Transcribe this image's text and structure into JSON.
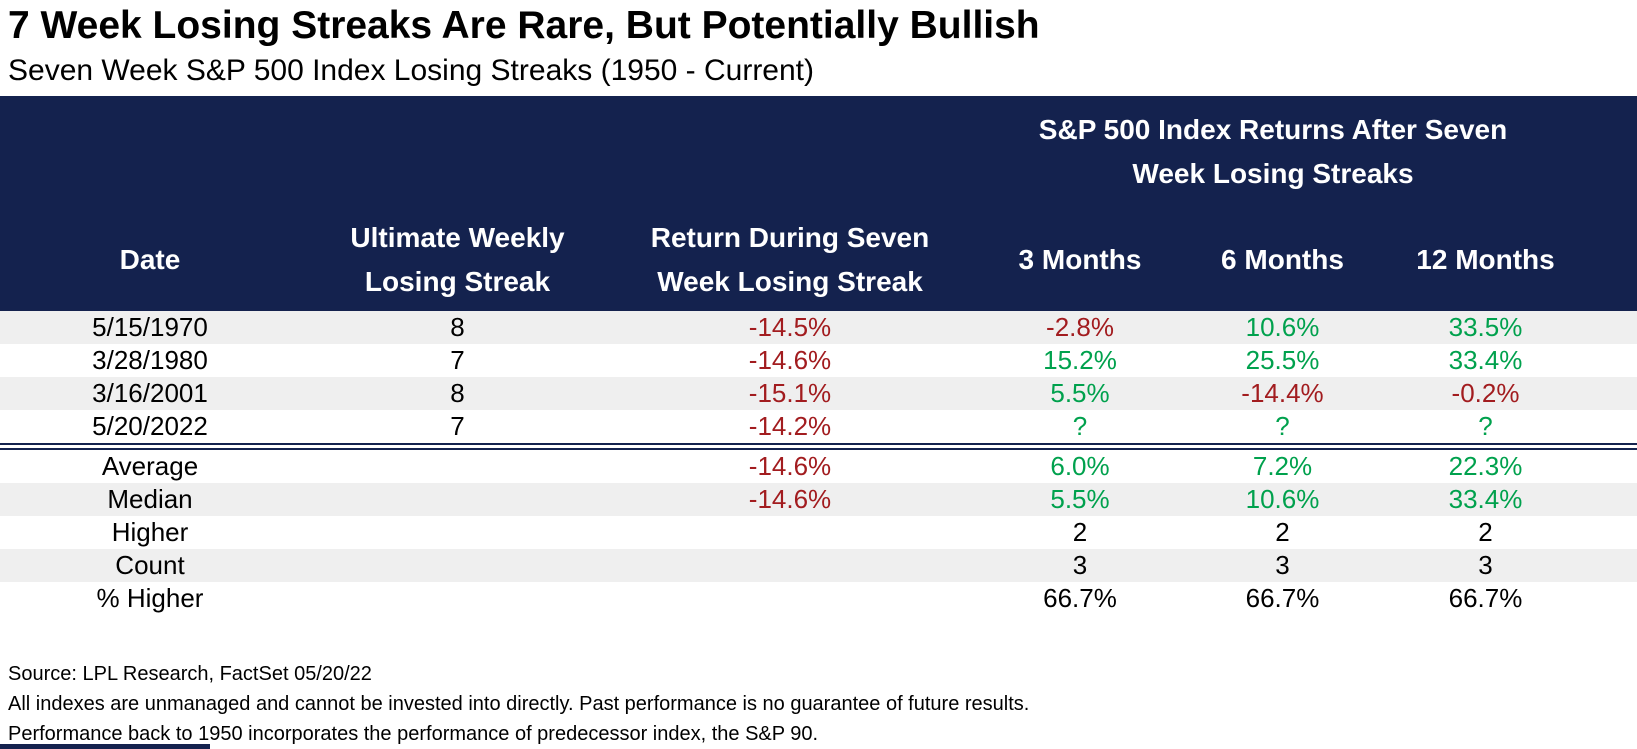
{
  "colors": {
    "navy": "#14224E",
    "negative": "#A21C1F",
    "positive": "#00A14D",
    "shade": "#EFEFEF",
    "text": "#000000"
  },
  "title": "7 Week Losing Streaks Are Rare, But Potentially Bullish",
  "subtitle": "Seven Week S&P 500 Index Losing Streaks (1950 - Current)",
  "table": {
    "group_header": "S&P 500 Index Returns After Seven\nWeek Losing Streaks",
    "columns": [
      "Date",
      "Ultimate Weekly\nLosing Streak",
      "Return During Seven\nWeek Losing Streak",
      "3 Months",
      "6 Months",
      "12 Months"
    ],
    "rows": [
      {
        "date": "5/15/1970",
        "streak": "8",
        "ret": {
          "text": "-14.5%",
          "tone": "neg"
        },
        "m3": {
          "text": "-2.8%",
          "tone": "neg"
        },
        "m6": {
          "text": "10.6%",
          "tone": "pos"
        },
        "m12": {
          "text": "33.5%",
          "tone": "pos"
        }
      },
      {
        "date": "3/28/1980",
        "streak": "7",
        "ret": {
          "text": "-14.6%",
          "tone": "neg"
        },
        "m3": {
          "text": "15.2%",
          "tone": "pos"
        },
        "m6": {
          "text": "25.5%",
          "tone": "pos"
        },
        "m12": {
          "text": "33.4%",
          "tone": "pos"
        }
      },
      {
        "date": "3/16/2001",
        "streak": "8",
        "ret": {
          "text": "-15.1%",
          "tone": "neg"
        },
        "m3": {
          "text": "5.5%",
          "tone": "pos"
        },
        "m6": {
          "text": "-14.4%",
          "tone": "neg"
        },
        "m12": {
          "text": "-0.2%",
          "tone": "neg"
        }
      },
      {
        "date": "5/20/2022",
        "streak": "7",
        "ret": {
          "text": "-14.2%",
          "tone": "neg"
        },
        "m3": {
          "text": "?",
          "tone": "pos"
        },
        "m6": {
          "text": "?",
          "tone": "pos"
        },
        "m12": {
          "text": "?",
          "tone": "pos"
        }
      }
    ],
    "summary": [
      {
        "label": "Average",
        "streak": "",
        "ret": {
          "text": "-14.6%",
          "tone": "neg"
        },
        "m3": {
          "text": "6.0%",
          "tone": "pos"
        },
        "m6": {
          "text": "7.2%",
          "tone": "pos"
        },
        "m12": {
          "text": "22.3%",
          "tone": "pos"
        }
      },
      {
        "label": "Median",
        "streak": "",
        "ret": {
          "text": "-14.6%",
          "tone": "neg"
        },
        "m3": {
          "text": "5.5%",
          "tone": "pos"
        },
        "m6": {
          "text": "10.6%",
          "tone": "pos"
        },
        "m12": {
          "text": "33.4%",
          "tone": "pos"
        }
      },
      {
        "label": "Higher",
        "streak": "",
        "ret": {
          "text": "",
          "tone": "neutral"
        },
        "m3": {
          "text": "2",
          "tone": "neutral"
        },
        "m6": {
          "text": "2",
          "tone": "neutral"
        },
        "m12": {
          "text": "2",
          "tone": "neutral"
        }
      },
      {
        "label": "Count",
        "streak": "",
        "ret": {
          "text": "",
          "tone": "neutral"
        },
        "m3": {
          "text": "3",
          "tone": "neutral"
        },
        "m6": {
          "text": "3",
          "tone": "neutral"
        },
        "m12": {
          "text": "3",
          "tone": "neutral"
        }
      },
      {
        "label": "% Higher",
        "streak": "",
        "ret": {
          "text": "",
          "tone": "neutral"
        },
        "m3": {
          "text": "66.7%",
          "tone": "neutral"
        },
        "m6": {
          "text": "66.7%",
          "tone": "neutral"
        },
        "m12": {
          "text": "66.7%",
          "tone": "neutral"
        }
      }
    ]
  },
  "footer": {
    "source": "Source: LPL Research, FactSet 05/20/22",
    "disclaimer1": "All indexes are unmanaged and cannot be invested into directly. Past performance is no guarantee of future results.",
    "disclaimer2": "Performance back to 1950 incorporates the performance of predecessor index, the S&P 90."
  },
  "chart_data": {
    "type": "table",
    "title": "7 Week Losing Streaks Are Rare, But Potentially Bullish",
    "subtitle": "Seven Week S&P 500 Index Losing Streaks (1950 - Current)",
    "group_header": "S&P 500 Index Returns After Seven Week Losing Streaks",
    "columns": [
      "Date",
      "Ultimate Weekly Losing Streak",
      "Return During Seven Week Losing Streak",
      "3 Months",
      "6 Months",
      "12 Months"
    ],
    "rows": [
      [
        "5/15/1970",
        8,
        "-14.5%",
        "-2.8%",
        "10.6%",
        "33.5%"
      ],
      [
        "3/28/1980",
        7,
        "-14.6%",
        "15.2%",
        "25.5%",
        "33.4%"
      ],
      [
        "3/16/2001",
        8,
        "-15.1%",
        "5.5%",
        "-14.4%",
        "-0.2%"
      ],
      [
        "5/20/2022",
        7,
        "-14.2%",
        "?",
        "?",
        "?"
      ]
    ],
    "summary_rows": [
      [
        "Average",
        null,
        "-14.6%",
        "6.0%",
        "7.2%",
        "22.3%"
      ],
      [
        "Median",
        null,
        "-14.6%",
        "5.5%",
        "10.6%",
        "33.4%"
      ],
      [
        "Higher",
        null,
        null,
        2,
        2,
        2
      ],
      [
        "Count",
        null,
        null,
        3,
        3,
        3
      ],
      [
        "% Higher",
        null,
        null,
        "66.7%",
        "66.7%",
        "66.7%"
      ]
    ],
    "notes": [
      "Source: LPL Research, FactSet 05/20/22",
      "All indexes are unmanaged and cannot be invested into directly. Past performance is no guarantee of future results.",
      "Performance back to 1950 incorporates the performance of predecessor index, the S&P 90."
    ]
  }
}
